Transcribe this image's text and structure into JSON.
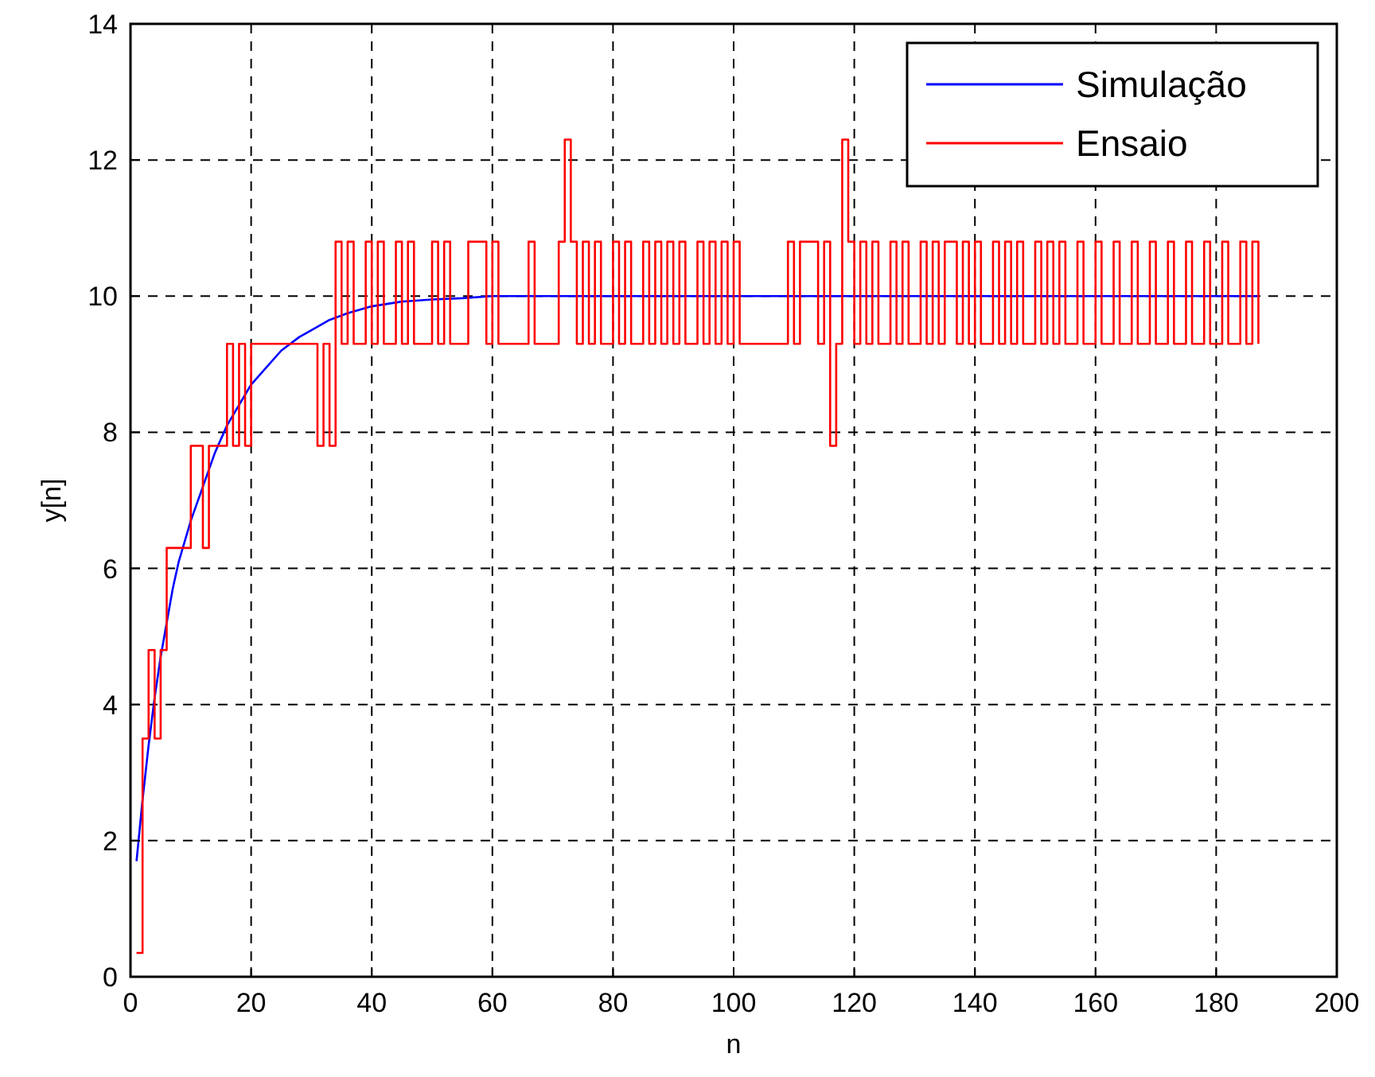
{
  "chart_data": {
    "type": "line",
    "xlabel": "n",
    "ylabel": "y[n]",
    "xlim": [
      0,
      200
    ],
    "ylim": [
      0,
      14
    ],
    "xticks": [
      0,
      20,
      40,
      60,
      80,
      100,
      120,
      140,
      160,
      180,
      200
    ],
    "yticks": [
      0,
      2,
      4,
      6,
      8,
      10,
      12,
      14
    ],
    "grid": true,
    "legend": "top right",
    "marker": "none",
    "line_style": "solid",
    "series": [
      {
        "name": "Simulação",
        "color": "#0000ff",
        "x": [
          1,
          2,
          3,
          4,
          5,
          6,
          7,
          8,
          10,
          12,
          14,
          16,
          18,
          20,
          22,
          25,
          28,
          30,
          33,
          36,
          40,
          45,
          50,
          55,
          60,
          70,
          80,
          100,
          120,
          140,
          160,
          187
        ],
        "values": [
          1.7,
          2.6,
          3.4,
          4.1,
          4.7,
          5.2,
          5.7,
          6.1,
          6.7,
          7.2,
          7.7,
          8.1,
          8.4,
          8.7,
          8.9,
          9.2,
          9.4,
          9.5,
          9.65,
          9.75,
          9.85,
          9.92,
          9.95,
          9.97,
          10,
          10,
          10,
          10,
          10,
          10,
          10,
          10
        ]
      },
      {
        "name": "Ensaio",
        "color": "#ff0000",
        "type": "step",
        "x": [
          1,
          2,
          3,
          4,
          5,
          6,
          10,
          12,
          13,
          16,
          17,
          18,
          19,
          20,
          31,
          32,
          33,
          34,
          35,
          36,
          37,
          39,
          40,
          41,
          42,
          44,
          45,
          46,
          47,
          50,
          51,
          52,
          53,
          56,
          59,
          60,
          61,
          66,
          67,
          71,
          72,
          73,
          74,
          75,
          76,
          77,
          78,
          80,
          81,
          82,
          83,
          85,
          86,
          87,
          88,
          89,
          90,
          91,
          92,
          94,
          95,
          96,
          97,
          98,
          99,
          100,
          101,
          109,
          110,
          111,
          114,
          115,
          116,
          117,
          118,
          119,
          120,
          121,
          122,
          123,
          124,
          126,
          127,
          128,
          129,
          131,
          132,
          133,
          134,
          135,
          137,
          138,
          139,
          140,
          141,
          143,
          144,
          145,
          146,
          147,
          148,
          150,
          151,
          152,
          153,
          154,
          155,
          157,
          158,
          160,
          161,
          163,
          164,
          166,
          167,
          169,
          170,
          172,
          173,
          175,
          176,
          178,
          179,
          181,
          182,
          184,
          185,
          186,
          187
        ],
        "values": [
          0.35,
          3.5,
          4.8,
          3.5,
          4.8,
          6.3,
          7.8,
          6.3,
          7.8,
          9.3,
          7.8,
          9.3,
          7.8,
          9.3,
          7.8,
          9.3,
          7.8,
          10.8,
          9.3,
          10.8,
          9.3,
          10.8,
          9.3,
          10.8,
          9.3,
          10.8,
          9.3,
          10.8,
          9.3,
          10.8,
          9.3,
          10.8,
          9.3,
          10.8,
          9.3,
          10.8,
          9.3,
          10.8,
          9.3,
          10.8,
          12.3,
          10.8,
          9.3,
          10.8,
          9.3,
          10.8,
          9.3,
          10.8,
          9.3,
          10.8,
          9.3,
          10.8,
          9.3,
          10.8,
          9.3,
          10.8,
          9.3,
          10.8,
          9.3,
          10.8,
          9.3,
          10.8,
          9.3,
          10.8,
          9.3,
          10.8,
          9.3,
          10.8,
          9.3,
          10.8,
          9.3,
          10.8,
          7.8,
          9.3,
          12.3,
          10.8,
          9.3,
          10.8,
          9.3,
          10.8,
          9.3,
          10.8,
          9.3,
          10.8,
          9.3,
          10.8,
          9.3,
          10.8,
          9.3,
          10.8,
          9.3,
          10.8,
          9.3,
          10.8,
          9.3,
          10.8,
          9.3,
          10.8,
          9.3,
          10.8,
          9.3,
          10.8,
          9.3,
          10.8,
          9.3,
          10.8,
          9.3,
          10.8,
          9.3,
          10.8,
          9.3,
          10.8,
          9.3,
          10.8,
          9.3,
          10.8,
          9.3,
          10.8,
          9.3,
          10.8,
          9.3,
          10.8,
          9.3,
          10.8,
          9.3,
          10.8,
          9.3,
          10.8,
          9.3
        ]
      }
    ]
  }
}
